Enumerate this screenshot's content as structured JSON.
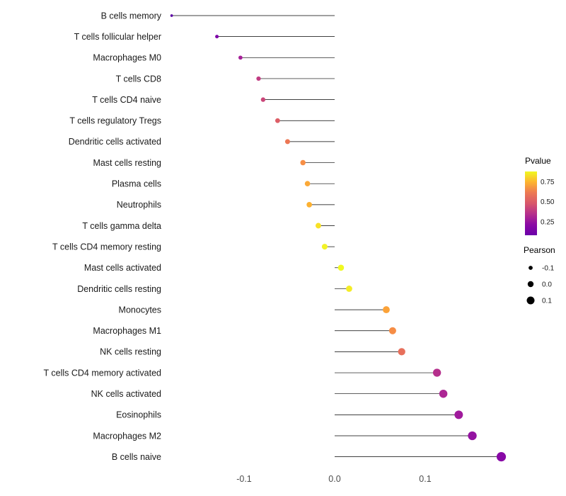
{
  "figure": {
    "background": "#FFFFFF"
  },
  "chart_data": {
    "type": "lollipop",
    "title": "",
    "xlabel": "",
    "ylabel": "",
    "categories": [
      "B cells memory",
      "T cells follicular helper",
      "Macrophages M0",
      "T cells CD8",
      "T cells CD4 naive",
      "T cells regulatory Tregs",
      "Dendritic cells activated",
      "Mast cells resting",
      "Plasma cells",
      "Neutrophils",
      "T cells gamma delta",
      "T cells CD4 memory resting",
      "Mast cells activated",
      "Dendritic cells resting",
      "Monocytes",
      "Macrophages M1",
      "NK cells resting",
      "T cells CD4 memory activated",
      "NK cells activated",
      "Eosinophils",
      "Macrophages M2",
      "B cells naive"
    ],
    "values": [
      -0.18,
      -0.13,
      -0.104,
      -0.084,
      -0.079,
      -0.063,
      -0.052,
      -0.035,
      -0.03,
      -0.028,
      -0.018,
      -0.011,
      0.007,
      0.016,
      0.057,
      0.064,
      0.074,
      0.113,
      0.12,
      0.137,
      0.152,
      0.184
    ],
    "point_colors": [
      "#5D01A6",
      "#7E03A8",
      "#A62098",
      "#C13B82",
      "#CA4679",
      "#DD5E66",
      "#EC7754",
      "#F78E45",
      "#FBA938",
      "#FDB130",
      "#F8E125",
      "#F2F227",
      "#F0F921",
      "#F4EC26",
      "#FBA238",
      "#F68D45",
      "#E76F5B",
      "#B52F8C",
      "#AC2694",
      "#A01A9C",
      "#9413A1",
      "#8808A6"
    ],
    "x_tick_labels": [
      "-0.1",
      "0.0",
      "0.1"
    ],
    "x_tick_values": [
      -0.1,
      0,
      0.1
    ],
    "xlim": [
      -0.21,
      0.21
    ],
    "size_encoding": "Pearson",
    "color_encoding": "Pvalue",
    "legend_pvalue": {
      "title": "Pvalue",
      "tick_labels": [
        "0.75",
        "0.50",
        "0.25"
      ],
      "gradient_top_to_bottom": [
        "#F0F921",
        "#FDB32F",
        "#ED7953",
        "#D8576B",
        "#B52F8C",
        "#8B0AA5",
        "#6A00A8"
      ]
    },
    "legend_pearson": {
      "title": "Pearson",
      "tick_labels": [
        "-0.1",
        "0.0",
        "0.1"
      ],
      "tick_values": [
        -0.1,
        0,
        0.1
      ]
    }
  }
}
